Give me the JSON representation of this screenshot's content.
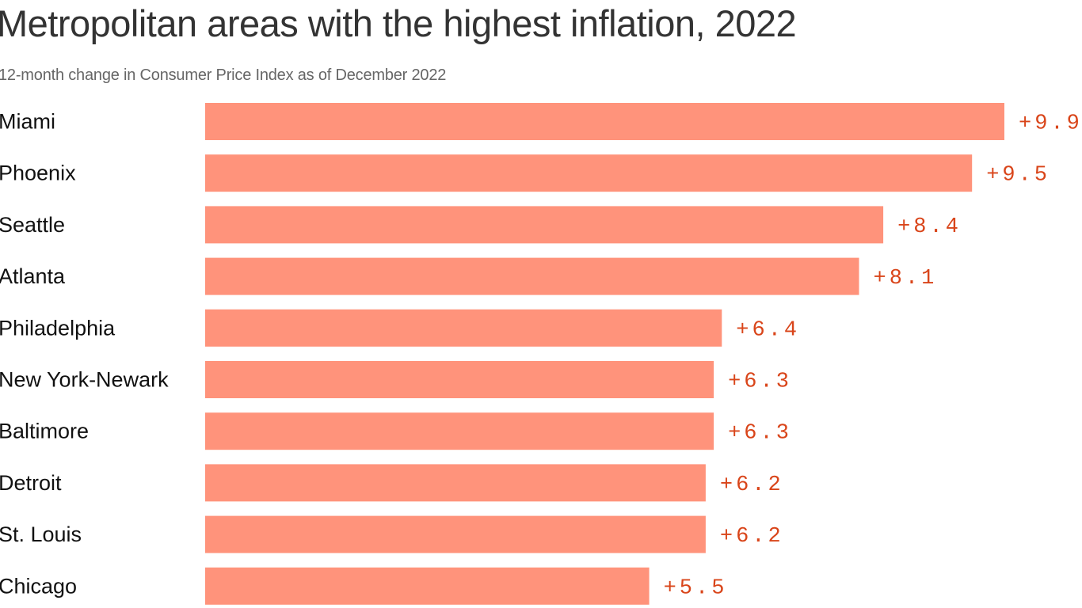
{
  "chart_data": {
    "type": "bar",
    "orientation": "horizontal",
    "title": "Metropolitan areas with the highest inflation, 2022",
    "subtitle": "12-month change in Consumer Price Index as of December 2022",
    "categories": [
      "Miami",
      "Phoenix",
      "Seattle",
      "Atlanta",
      "Philadelphia",
      "New York-Newark",
      "Baltimore",
      "Detroit",
      "St. Louis",
      "Chicago"
    ],
    "values": [
      9.9,
      9.5,
      8.4,
      8.1,
      6.4,
      6.3,
      6.3,
      6.2,
      6.2,
      5.5
    ],
    "value_labels": [
      "+9.9",
      "+9.5",
      "+8.4",
      "+8.1",
      "+6.4",
      "+6.3",
      "+6.3",
      "+6.2",
      "+6.2",
      "+5.5"
    ],
    "xlabel": "",
    "ylabel": "",
    "xlim": [
      0,
      9.9
    ],
    "grid": false,
    "legend": "none",
    "colors": {
      "bar": "#ff937b",
      "value_label": "#d9451a",
      "title": "#333333",
      "subtitle": "#666666",
      "category_label": "#111111"
    }
  }
}
